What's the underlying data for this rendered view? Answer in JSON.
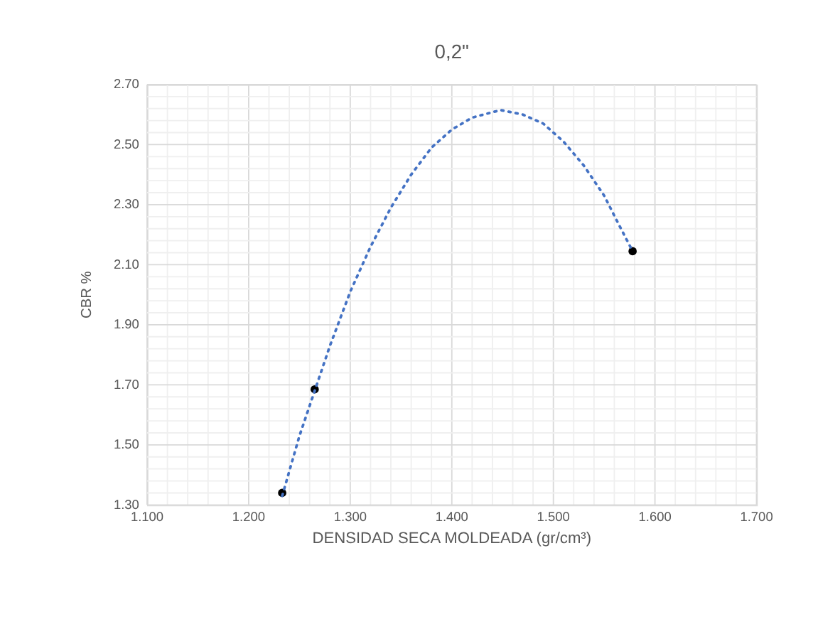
{
  "chart_data": {
    "type": "scatter",
    "title": "0,2\"",
    "xlabel": "DENSIDAD SECA MOLDEADA (gr/cm³)",
    "ylabel": "CBR %",
    "series": [
      {
        "color": "#000000",
        "marker": "circle",
        "x": [
          1.233,
          1.265,
          1.578
        ],
        "values": [
          1.34,
          1.685,
          2.145
        ]
      },
      {
        "type": "line",
        "color": "#4472c4",
        "marker": "none",
        "line_style": "dotted",
        "x": [
          1.233,
          1.25,
          1.265,
          1.28,
          1.3,
          1.32,
          1.34,
          1.36,
          1.38,
          1.4,
          1.42,
          1.448,
          1.47,
          1.49,
          1.51,
          1.53,
          1.55,
          1.565,
          1.578
        ],
        "values": [
          1.33,
          1.53,
          1.68,
          1.83,
          2.01,
          2.16,
          2.29,
          2.4,
          2.49,
          2.55,
          2.59,
          2.615,
          2.6,
          2.57,
          2.51,
          2.43,
          2.33,
          2.23,
          2.145
        ]
      }
    ],
    "xlim": [
      1.1,
      1.7
    ],
    "xticks": [
      {
        "value": 1.1,
        "label": "1.100"
      },
      {
        "value": 1.12,
        "label": null
      },
      {
        "value": 1.14,
        "label": null
      },
      {
        "value": 1.16,
        "label": null
      },
      {
        "value": 1.18,
        "label": null
      },
      {
        "value": 1.2,
        "label": "1.200"
      },
      {
        "value": 1.22,
        "label": null
      },
      {
        "value": 1.24,
        "label": null
      },
      {
        "value": 1.26,
        "label": null
      },
      {
        "value": 1.28,
        "label": null
      },
      {
        "value": 1.3,
        "label": "1.300"
      },
      {
        "value": 1.32,
        "label": null
      },
      {
        "value": 1.34,
        "label": null
      },
      {
        "value": 1.36,
        "label": null
      },
      {
        "value": 1.38,
        "label": null
      },
      {
        "value": 1.4,
        "label": "1.400"
      },
      {
        "value": 1.42,
        "label": null
      },
      {
        "value": 1.44,
        "label": null
      },
      {
        "value": 1.46,
        "label": null
      },
      {
        "value": 1.48,
        "label": null
      },
      {
        "value": 1.5,
        "label": "1.500"
      },
      {
        "value": 1.52,
        "label": null
      },
      {
        "value": 1.54,
        "label": null
      },
      {
        "value": 1.56,
        "label": null
      },
      {
        "value": 1.58,
        "label": null
      },
      {
        "value": 1.6,
        "label": "1.600"
      },
      {
        "value": 1.62,
        "label": null
      },
      {
        "value": 1.64,
        "label": null
      },
      {
        "value": 1.66,
        "label": null
      },
      {
        "value": 1.68,
        "label": null
      },
      {
        "value": 1.7,
        "label": "1.700"
      }
    ],
    "ylim": [
      1.3,
      2.7
    ],
    "yticks": [
      {
        "value": 1.3,
        "label": "1.30"
      },
      {
        "value": 1.34,
        "label": null
      },
      {
        "value": 1.38,
        "label": null
      },
      {
        "value": 1.42,
        "label": null
      },
      {
        "value": 1.46,
        "label": null
      },
      {
        "value": 1.5,
        "label": "1.50"
      },
      {
        "value": 1.54,
        "label": null
      },
      {
        "value": 1.58,
        "label": null
      },
      {
        "value": 1.62,
        "label": null
      },
      {
        "value": 1.66,
        "label": null
      },
      {
        "value": 1.7,
        "label": "1.70"
      },
      {
        "value": 1.74,
        "label": null
      },
      {
        "value": 1.78,
        "label": null
      },
      {
        "value": 1.82,
        "label": null
      },
      {
        "value": 1.86,
        "label": null
      },
      {
        "value": 1.9,
        "label": "1.90"
      },
      {
        "value": 1.94,
        "label": null
      },
      {
        "value": 1.98,
        "label": null
      },
      {
        "value": 2.02,
        "label": null
      },
      {
        "value": 2.06,
        "label": null
      },
      {
        "value": 2.1,
        "label": "2.10"
      },
      {
        "value": 2.14,
        "label": null
      },
      {
        "value": 2.18,
        "label": null
      },
      {
        "value": 2.22,
        "label": null
      },
      {
        "value": 2.26,
        "label": null
      },
      {
        "value": 2.3,
        "label": "2.30"
      },
      {
        "value": 2.34,
        "label": null
      },
      {
        "value": 2.38,
        "label": null
      },
      {
        "value": 2.42,
        "label": null
      },
      {
        "value": 2.46,
        "label": null
      },
      {
        "value": 2.5,
        "label": "2.50"
      },
      {
        "value": 2.54,
        "label": null
      },
      {
        "value": 2.58,
        "label": null
      },
      {
        "value": 2.62,
        "label": null
      },
      {
        "value": 2.66,
        "label": null
      },
      {
        "value": 2.7,
        "label": "2.70"
      }
    ],
    "grid": true
  }
}
